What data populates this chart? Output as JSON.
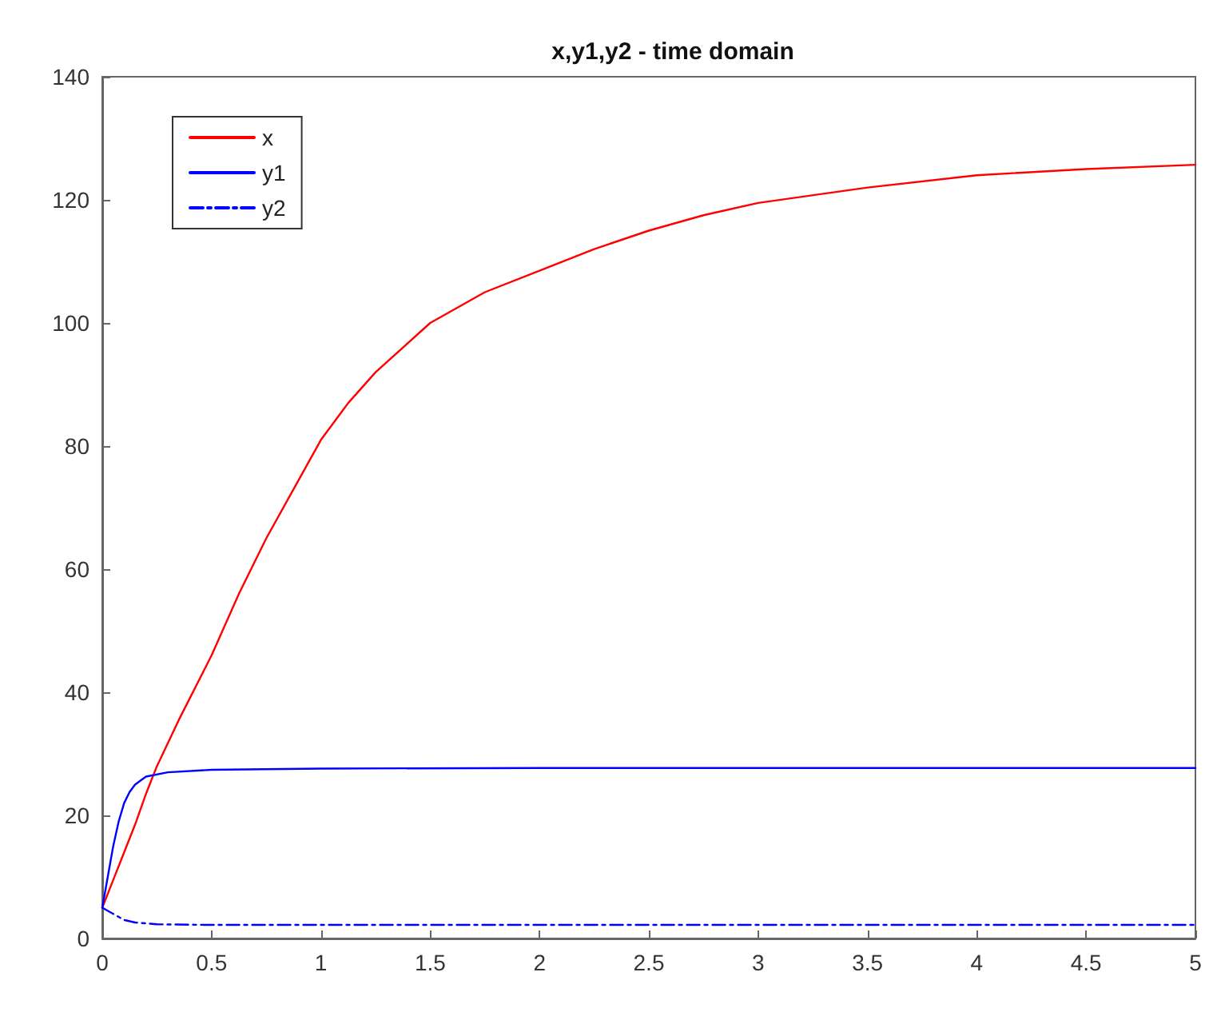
{
  "chart_data": {
    "type": "line",
    "title": "x,y1,y2 - time domain",
    "xlim": [
      0,
      5
    ],
    "xticks": [
      0,
      0.5,
      1,
      1.5,
      2,
      2.5,
      3,
      3.5,
      4,
      4.5,
      5
    ],
    "ylim": [
      0,
      140
    ],
    "yticks": [
      0,
      20,
      40,
      60,
      80,
      100,
      120,
      140
    ],
    "grid": false,
    "legend": "top left",
    "marker": "none",
    "series": [
      {
        "name": "x",
        "color": "#ff0000",
        "line_style": "solid",
        "x": [
          0,
          0.05,
          0.1,
          0.15,
          0.2,
          0.25,
          0.35,
          0.5,
          0.625,
          0.75,
          0.875,
          1,
          1.125,
          1.25,
          1.5,
          1.75,
          2,
          2.25,
          2.5,
          2.75,
          3,
          3.5,
          4,
          4.5,
          5
        ],
        "values": [
          5,
          9.5,
          14,
          18.5,
          23.5,
          28,
          35.5,
          46,
          56,
          65,
          73,
          81,
          87,
          92,
          100,
          105,
          108.5,
          112,
          115,
          117.5,
          119.5,
          122,
          124,
          125,
          125.7
        ]
      },
      {
        "name": "y1",
        "color": "#0000ff",
        "line_style": "solid",
        "x": [
          0,
          0.025,
          0.05,
          0.075,
          0.1,
          0.125,
          0.15,
          0.2,
          0.3,
          0.5,
          1,
          2,
          3,
          4,
          5
        ],
        "values": [
          5,
          10,
          15,
          19,
          22,
          23.8,
          25,
          26.3,
          27,
          27.4,
          27.6,
          27.7,
          27.7,
          27.7,
          27.7
        ]
      },
      {
        "name": "y2",
        "color": "#0000ff",
        "line_style": "dashed",
        "x": [
          0,
          0.05,
          0.1,
          0.15,
          0.25,
          0.5,
          1,
          2,
          3,
          4,
          5
        ],
        "values": [
          5,
          4,
          3,
          2.6,
          2.3,
          2.2,
          2.2,
          2.2,
          2.2,
          2.2,
          2.2
        ]
      }
    ]
  }
}
